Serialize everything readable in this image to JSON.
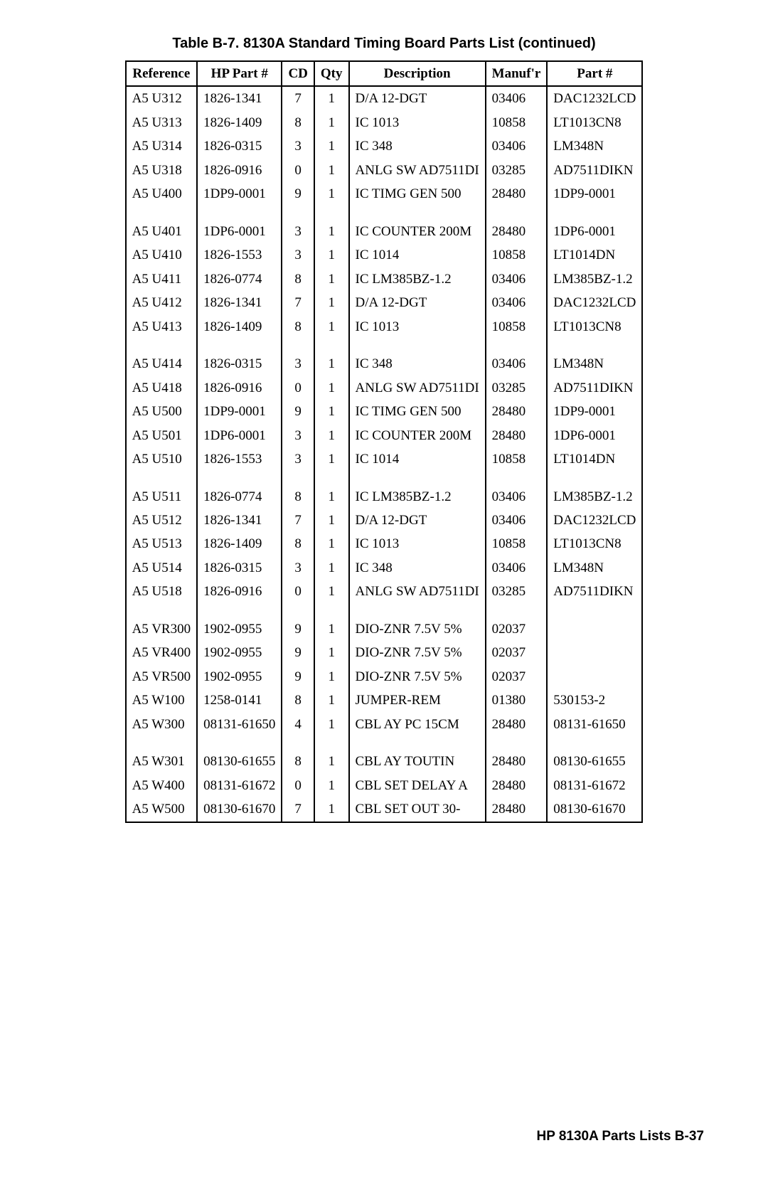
{
  "title": "Table B-7. 8130A Standard Timing Board Parts List (continued)",
  "footer": "HP 8130A Parts Lists   B-37",
  "columns": [
    "Reference",
    "HP Part #",
    "CD",
    "Qty",
    "Description",
    "Manuf'r",
    "Part #"
  ],
  "groups": [
    [
      {
        "ref": "A5 U312",
        "hp": "1826-1341",
        "cd": "7",
        "qty": "1",
        "desc": "D/A 12-DGT",
        "mfr": "03406",
        "part": "DAC1232LCD"
      },
      {
        "ref": "A5 U313",
        "hp": "1826-1409",
        "cd": "8",
        "qty": "1",
        "desc": "IC 1013",
        "mfr": "10858",
        "part": "LT1013CN8"
      },
      {
        "ref": "A5 U314",
        "hp": "1826-0315",
        "cd": "3",
        "qty": "1",
        "desc": "IC 348",
        "mfr": "03406",
        "part": "LM348N"
      },
      {
        "ref": "A5 U318",
        "hp": "1826-0916",
        "cd": "0",
        "qty": "1",
        "desc": "ANLG SW AD7511DI",
        "mfr": "03285",
        "part": "AD7511DIKN"
      },
      {
        "ref": "A5 U400",
        "hp": "1DP9-0001",
        "cd": "9",
        "qty": "1",
        "desc": "IC TIMG GEN 500",
        "mfr": "28480",
        "part": "1DP9-0001"
      }
    ],
    [
      {
        "ref": "A5 U401",
        "hp": "1DP6-0001",
        "cd": "3",
        "qty": "1",
        "desc": "IC COUNTER 200M",
        "mfr": "28480",
        "part": "1DP6-0001"
      },
      {
        "ref": "A5 U410",
        "hp": "1826-1553",
        "cd": "3",
        "qty": "1",
        "desc": "IC 1014",
        "mfr": "10858",
        "part": "LT1014DN"
      },
      {
        "ref": "A5 U411",
        "hp": "1826-0774",
        "cd": "8",
        "qty": "1",
        "desc": "IC LM385BZ-1.2",
        "mfr": "03406",
        "part": "LM385BZ-1.2"
      },
      {
        "ref": "A5 U412",
        "hp": "1826-1341",
        "cd": "7",
        "qty": "1",
        "desc": "D/A 12-DGT",
        "mfr": "03406",
        "part": "DAC1232LCD"
      },
      {
        "ref": "A5 U413",
        "hp": "1826-1409",
        "cd": "8",
        "qty": "1",
        "desc": "IC 1013",
        "mfr": "10858",
        "part": "LT1013CN8"
      }
    ],
    [
      {
        "ref": "A5 U414",
        "hp": "1826-0315",
        "cd": "3",
        "qty": "1",
        "desc": "IC 348",
        "mfr": "03406",
        "part": "LM348N"
      },
      {
        "ref": "A5 U418",
        "hp": "1826-0916",
        "cd": "0",
        "qty": "1",
        "desc": "ANLG SW AD7511DI",
        "mfr": "03285",
        "part": "AD7511DIKN"
      },
      {
        "ref": "A5 U500",
        "hp": "1DP9-0001",
        "cd": "9",
        "qty": "1",
        "desc": "IC TIMG GEN 500",
        "mfr": "28480",
        "part": "1DP9-0001"
      },
      {
        "ref": "A5 U501",
        "hp": "1DP6-0001",
        "cd": "3",
        "qty": "1",
        "desc": "IC COUNTER 200M",
        "mfr": "28480",
        "part": "1DP6-0001"
      },
      {
        "ref": "A5 U510",
        "hp": "1826-1553",
        "cd": "3",
        "qty": "1",
        "desc": "IC 1014",
        "mfr": "10858",
        "part": "LT1014DN"
      }
    ],
    [
      {
        "ref": "A5 U511",
        "hp": "1826-0774",
        "cd": "8",
        "qty": "1",
        "desc": "IC LM385BZ-1.2",
        "mfr": "03406",
        "part": "LM385BZ-1.2"
      },
      {
        "ref": "A5 U512",
        "hp": "1826-1341",
        "cd": "7",
        "qty": "1",
        "desc": "D/A 12-DGT",
        "mfr": "03406",
        "part": "DAC1232LCD"
      },
      {
        "ref": "A5 U513",
        "hp": "1826-1409",
        "cd": "8",
        "qty": "1",
        "desc": "IC 1013",
        "mfr": "10858",
        "part": "LT1013CN8"
      },
      {
        "ref": "A5 U514",
        "hp": "1826-0315",
        "cd": "3",
        "qty": "1",
        "desc": "IC 348",
        "mfr": "03406",
        "part": "LM348N"
      },
      {
        "ref": "A5 U518",
        "hp": "1826-0916",
        "cd": "0",
        "qty": "1",
        "desc": "ANLG SW AD7511DI",
        "mfr": "03285",
        "part": "AD7511DIKN"
      }
    ],
    [
      {
        "ref": "A5 VR300",
        "hp": "1902-0955",
        "cd": "9",
        "qty": "1",
        "desc": "DIO-ZNR 7.5V 5%",
        "mfr": "02037",
        "part": ""
      },
      {
        "ref": "A5 VR400",
        "hp": "1902-0955",
        "cd": "9",
        "qty": "1",
        "desc": "DIO-ZNR 7.5V 5%",
        "mfr": "02037",
        "part": ""
      },
      {
        "ref": "A5 VR500",
        "hp": "1902-0955",
        "cd": "9",
        "qty": "1",
        "desc": "DIO-ZNR 7.5V 5%",
        "mfr": "02037",
        "part": ""
      },
      {
        "ref": "A5 W100",
        "hp": "1258-0141",
        "cd": "8",
        "qty": "1",
        "desc": "JUMPER-REM",
        "mfr": "01380",
        "part": "530153-2"
      },
      {
        "ref": "A5 W300",
        "hp": "08131-61650",
        "cd": "4",
        "qty": "1",
        "desc": "CBL AY PC 15CM",
        "mfr": "28480",
        "part": "08131-61650"
      }
    ],
    [
      {
        "ref": "A5 W301",
        "hp": "08130-61655",
        "cd": "8",
        "qty": "1",
        "desc": "CBL AY TOUTIN",
        "mfr": "28480",
        "part": "08130-61655"
      },
      {
        "ref": "A5 W400",
        "hp": "08131-61672",
        "cd": "0",
        "qty": "1",
        "desc": "CBL SET DELAY A",
        "mfr": "28480",
        "part": "08131-61672"
      },
      {
        "ref": "A5 W500",
        "hp": "08130-61670",
        "cd": "7",
        "qty": "1",
        "desc": "CBL SET OUT 30-",
        "mfr": "28480",
        "part": "08130-61670"
      }
    ]
  ]
}
